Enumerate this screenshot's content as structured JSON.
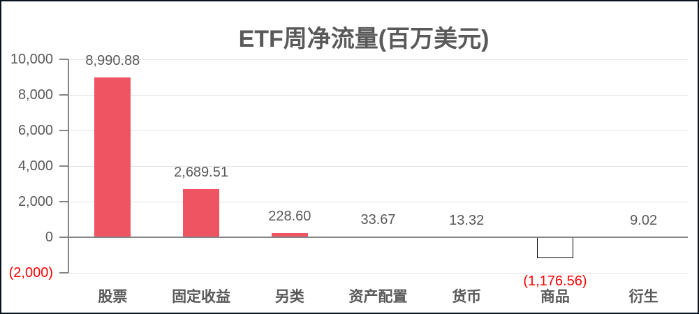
{
  "window": {
    "background": "#FFFFFF",
    "frame_color": "#0B1422"
  },
  "colors": {
    "bar_positive": "#EE5461",
    "bar_negative_fill": "#FFFFFF",
    "bar_negative_border": "#000000",
    "gridline": "#E2E2E2",
    "axis_line": "#858585",
    "text_default": "#595959",
    "text_negative": "#FF0000",
    "title_color": "#595959"
  },
  "chart_data": {
    "type": "bar",
    "title": "ETF周净流量(百万美元)",
    "categories": [
      "股票",
      "固定收益",
      "另类",
      "资产配置",
      "货币",
      "商品",
      "衍生"
    ],
    "values": [
      8990.88,
      2689.51,
      228.6,
      33.67,
      13.32,
      -1176.56,
      9.02
    ],
    "data_labels": [
      "8,990.88",
      "2,689.51",
      "228.60",
      "33.67",
      "13.32",
      "(1,176.56)",
      "9.02"
    ],
    "xlabel": "",
    "ylabel": "",
    "ylim": [
      -2000,
      10000
    ],
    "ytick_interval": 2000,
    "y_ticks": [
      {
        "label": "10,000",
        "value": 10000
      },
      {
        "label": "8,000",
        "value": 8000
      },
      {
        "label": "6,000",
        "value": 6000
      },
      {
        "label": "4,000",
        "value": 4000
      },
      {
        "label": "2,000",
        "value": 2000
      },
      {
        "label": "0",
        "value": 0
      },
      {
        "label": "(2,000)",
        "value": -2000,
        "negative": true
      }
    ],
    "grid": true,
    "legend": false,
    "negative_label_style": "red-parentheses"
  }
}
